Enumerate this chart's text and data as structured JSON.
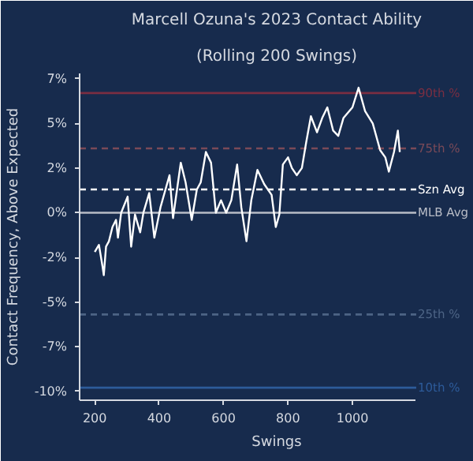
{
  "chart_data": {
    "type": "line",
    "title": "Marcell Ozuna's 2023 Contact Ability",
    "subtitle": "(Rolling 200 Swings)",
    "xlabel": "Swings",
    "ylabel": "Contact Frequency, Above Expected",
    "series": [
      {
        "color": "#ffffff",
        "x": [
          200,
          213,
          224,
          228,
          235,
          244,
          255,
          266,
          272,
          282,
          302,
          313,
          325,
          341,
          351,
          369,
          385,
          404,
          432,
          443,
          467,
          482,
          501,
          517,
          529,
          545,
          561,
          576,
          592,
          608,
          624,
          642,
          655,
          671,
          686,
          705,
          726,
          749,
          762,
          773,
          784,
          800,
          812,
          827,
          843,
          856,
          871,
          890,
          906,
          922,
          940,
          956,
          972,
          1000,
          1019,
          1039,
          1063,
          1086,
          1102,
          1113,
          1129,
          1141,
          1147
        ],
        "values": [
          -2.2,
          -1.8,
          -3.0,
          -3.5,
          -1.9,
          -1.6,
          -0.8,
          -0.4,
          -1.4,
          0.0,
          0.9,
          -1.9,
          -0.1,
          -1.1,
          0.0,
          1.1,
          -1.4,
          0.3,
          2.1,
          -0.3,
          2.8,
          1.7,
          -0.4,
          1.3,
          1.7,
          3.4,
          2.8,
          0.0,
          0.7,
          0.0,
          0.7,
          2.7,
          0.3,
          -1.6,
          0.7,
          2.4,
          1.6,
          1.0,
          -0.8,
          -0.1,
          2.7,
          3.1,
          2.5,
          2.1,
          2.5,
          3.9,
          5.4,
          4.5,
          5.3,
          5.9,
          4.6,
          4.3,
          5.3,
          5.9,
          7.0,
          5.7,
          5.0,
          3.5,
          3.1,
          2.3,
          3.4,
          4.6,
          3.4
        ]
      }
    ],
    "xlim": [
      153,
      1198
    ],
    "ylim": [
      -10.5,
      7.8
    ],
    "xticks": [
      200,
      400,
      600,
      800,
      1000
    ],
    "yticks": [
      {
        "value": 7.5,
        "label": "7%"
      },
      {
        "value": 5,
        "label": "5%"
      },
      {
        "value": 2.5,
        "label": "2%"
      },
      {
        "value": 0,
        "label": "0%"
      },
      {
        "value": -2.5,
        "label": "-2%"
      },
      {
        "value": -5,
        "label": "-5%"
      },
      {
        "value": -7.5,
        "label": "-7%"
      },
      {
        "value": -10,
        "label": "-10%"
      }
    ],
    "ref_lines": [
      {
        "axis": "y",
        "value": 6.7,
        "label": "90th %",
        "color": "#7a2e42",
        "line_style": "solid"
      },
      {
        "axis": "y",
        "value": 3.6,
        "label": "75th %",
        "color": "#7a4a58",
        "line_style": "dashed"
      },
      {
        "axis": "y",
        "value": 1.3,
        "label": "Szn Avg",
        "color": "#ffffff",
        "line_style": "dashed"
      },
      {
        "axis": "y",
        "value": 0,
        "label": "MLB Avg",
        "color": "#b8bcc6",
        "line_style": "solid"
      },
      {
        "axis": "y",
        "value": -5.7,
        "label": "25th %",
        "color": "#4d6485",
        "line_style": "dashed"
      },
      {
        "axis": "y",
        "value": -9.8,
        "label": "10th %",
        "color": "#2d5b9a",
        "line_style": "solid"
      }
    ],
    "grid": false
  }
}
